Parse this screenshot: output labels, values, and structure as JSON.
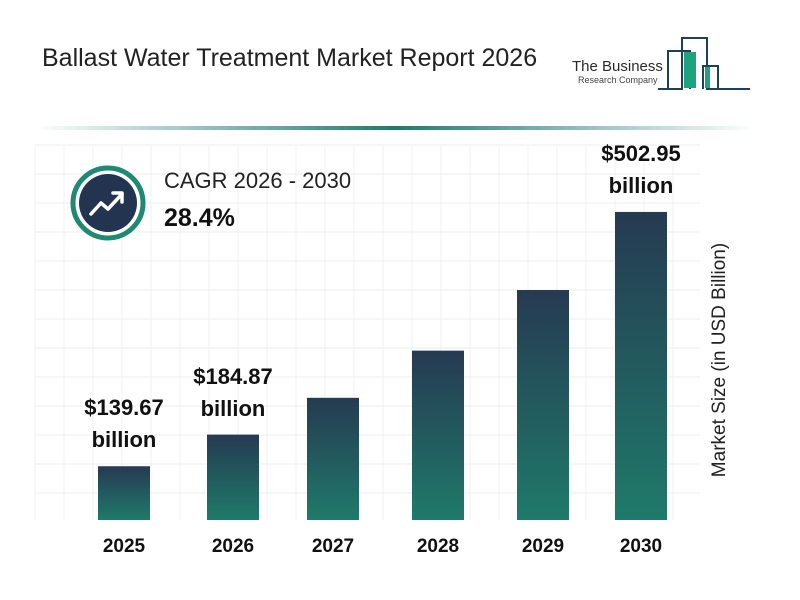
{
  "header": {
    "title": "Ballast Water Treatment Market Report 2026"
  },
  "logo": {
    "line1": "The Business",
    "line2": "Research Company"
  },
  "cagr": {
    "label": "CAGR 2026 - 2030",
    "value": "28.4%",
    "icon": "trending-up-icon"
  },
  "colors": {
    "bar_top": "#263a52",
    "bar_bottom": "#1f7a6a",
    "accent": "#1f8a72",
    "badge": "#22344f"
  },
  "chart_data": {
    "type": "bar",
    "categories": [
      "2025",
      "2026",
      "2027",
      "2028",
      "2029",
      "2030"
    ],
    "values": [
      139.67,
      184.87,
      237.4,
      304.8,
      391.4,
      502.95
    ],
    "data_labels": [
      "$139.67 billion",
      "$184.87 billion",
      "",
      "",
      "",
      "$502.95 billion"
    ],
    "data_label_lines": [
      [
        "$139.67",
        "billion"
      ],
      [
        "$184.87",
        "billion"
      ],
      null,
      null,
      null,
      [
        "$502.95",
        "billion"
      ]
    ],
    "xlabel": "",
    "ylabel": "Market Size (in USD Billion)",
    "grid": true
  }
}
